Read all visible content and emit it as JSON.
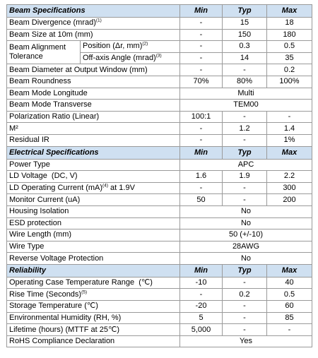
{
  "beam": {
    "header": [
      "Beam Specifications",
      "Min",
      "Typ",
      "Max"
    ],
    "rows": [
      [
        "Beam Divergence (mrad)",
        "-",
        "15",
        "18"
      ],
      [
        "Beam Size at 10m (mm)",
        "-",
        "150",
        "180"
      ],
      [
        "Beam Diameter at Output Window (mm)",
        "-",
        "-",
        "0.2"
      ],
      [
        "Beam Roundness",
        "70%",
        "80%",
        "100%"
      ],
      [
        "Beam Mode Longitude",
        "Multi"
      ],
      [
        "Beam Mode Transverse",
        "TEM00"
      ],
      [
        "Polarization Ratio (Linear)",
        "100:1",
        "-",
        "-"
      ],
      [
        "M²",
        "-",
        "1.2",
        "1.4"
      ],
      [
        "Residual IR",
        "-",
        "-",
        "1%"
      ]
    ],
    "divergence_note": "(1)",
    "alignment": {
      "label_line1": "Beam Alignment",
      "label_line2": "Tolerance",
      "position_label": "Position (Δr, mm)",
      "position_note": "(2)",
      "position_values": [
        "-",
        "0.3",
        "0.5"
      ],
      "angle_label": "Off-axis Angle (mrad)",
      "angle_note": "(3)",
      "angle_values": [
        "-",
        "14",
        "35"
      ]
    }
  },
  "electrical": {
    "header": [
      "Electrical Specifications",
      "Min",
      "Typ",
      "Max"
    ],
    "rows": [
      [
        "Power Type",
        "APC"
      ],
      [
        "LD Voltage  (DC, V)",
        "1.6",
        "1.9",
        "2.2"
      ],
      [
        "LD Operating Current (mA)",
        "-",
        "-",
        "300"
      ],
      [
        "Monitor Current (uA)",
        "50",
        "-",
        "200"
      ],
      [
        "Housing Isolation",
        "No"
      ],
      [
        "ESD protection",
        "No"
      ],
      [
        "Wire Length (mm)",
        "50 (+/-10)"
      ],
      [
        "Wire Type",
        "28AWG"
      ],
      [
        "Reverse Voltage Protection",
        "No"
      ]
    ],
    "current_note": "(4)",
    "current_suffix": " at 1.9V"
  },
  "reliability": {
    "header": [
      "Reliability",
      "Min",
      "Typ",
      "Max"
    ],
    "rows": [
      [
        "Operating Case Temperature Range  (℃)",
        "-10",
        "-",
        "40"
      ],
      [
        "Rise Time (Seconds)",
        "-",
        "0.2",
        "0.5"
      ],
      [
        "Storage Temperature (℃)",
        "-20",
        "-",
        "60"
      ],
      [
        "Environmental Humidity (RH, %)",
        "5",
        "-",
        "85"
      ],
      [
        "Lifetime (hours) (MTTF at 25℃)",
        "5,000",
        "-",
        "-"
      ],
      [
        "RoHS Compliance Declaration",
        "Yes"
      ]
    ],
    "rise_note": "(5)"
  },
  "colors": {
    "header_bg": "#cfe0f1",
    "border": "#9a9a9a"
  }
}
